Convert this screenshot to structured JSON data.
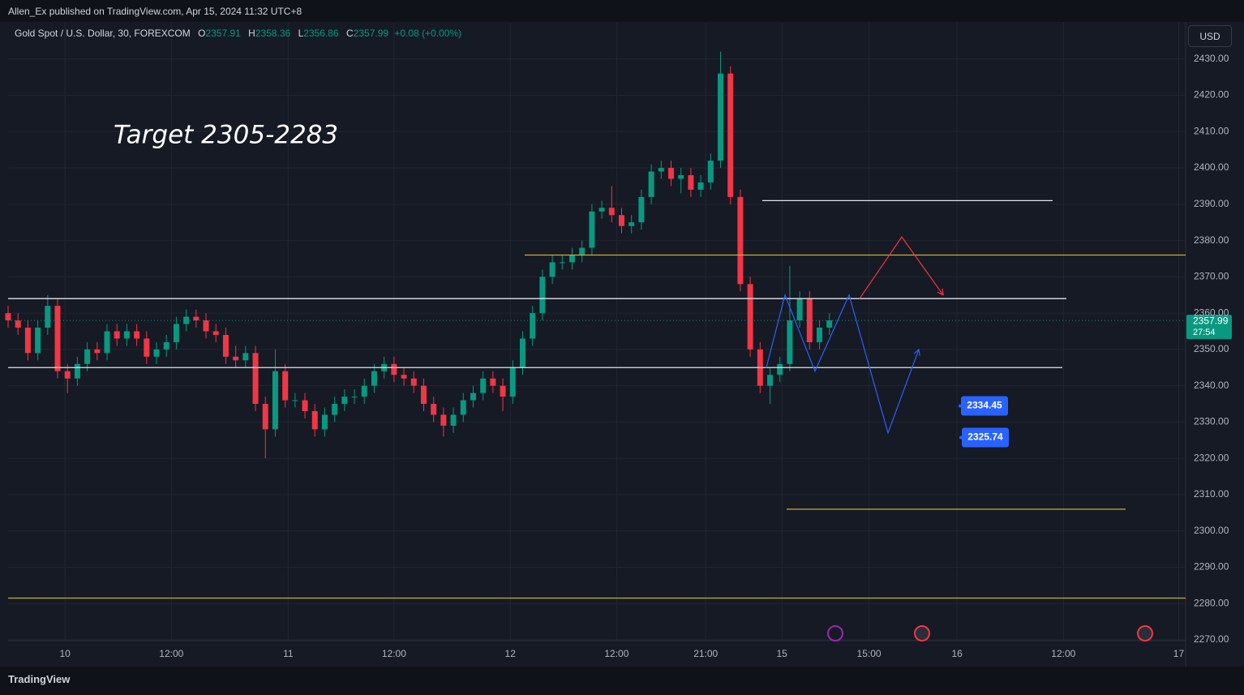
{
  "header": {
    "published": "Allen_Ex published on TradingView.com, Apr 15, 2024 11:32 UTC+8",
    "brand": "TradingView",
    "currency": "USD"
  },
  "chart_data": {
    "type": "candlestick",
    "symbol": "Gold Spot / U.S. Dollar, 30, FOREXCOM",
    "ohlc_legend": [
      {
        "key": "O",
        "value": 2357.91
      },
      {
        "key": "H",
        "value": 2358.36
      },
      {
        "key": "L",
        "value": 2356.86
      },
      {
        "key": "C",
        "value": 2357.99
      }
    ],
    "change": "+0.08 (+0.00%)",
    "annotation": "Target 2305-2283",
    "up_color": "#089981",
    "down_color": "#f23645",
    "xlim": [
      0,
      238
    ],
    "xticks": [
      {
        "value": 11.5,
        "label": "10"
      },
      {
        "value": 33,
        "label": "12:00"
      },
      {
        "value": 56.6,
        "label": "11"
      },
      {
        "value": 78,
        "label": "12:00"
      },
      {
        "value": 101.5,
        "label": "12"
      },
      {
        "value": 123,
        "label": "12:00"
      },
      {
        "value": 141,
        "label": "21:00"
      },
      {
        "value": 156.4,
        "label": "15"
      },
      {
        "value": 174,
        "label": "15:00"
      },
      {
        "value": 191.8,
        "label": "16"
      },
      {
        "value": 213.3,
        "label": "12:00"
      },
      {
        "value": 236.6,
        "label": "17"
      }
    ],
    "ylim": [
      2270,
      2440
    ],
    "yticks": [
      {
        "value": 2270,
        "label": "2270.00"
      },
      {
        "value": 2280,
        "label": "2280.00"
      },
      {
        "value": 2290,
        "label": "2290.00"
      },
      {
        "value": 2300,
        "label": "2300.00"
      },
      {
        "value": 2310,
        "label": "2310.00"
      },
      {
        "value": 2320,
        "label": "2320.00"
      },
      {
        "value": 2330,
        "label": "2330.00"
      },
      {
        "value": 2340,
        "label": "2340.00"
      },
      {
        "value": 2350,
        "label": "2350.00"
      },
      {
        "value": 2360,
        "label": "2360.00"
      },
      {
        "value": 2370,
        "label": "2370.00"
      },
      {
        "value": 2380,
        "label": "2380.00"
      },
      {
        "value": 2390,
        "label": "2390.00"
      },
      {
        "value": 2400,
        "label": "2400.00"
      },
      {
        "value": 2410,
        "label": "2410.00"
      },
      {
        "value": 2420,
        "label": "2420.00"
      },
      {
        "value": 2430,
        "label": "2430.00"
      }
    ],
    "grid": true,
    "series": {
      "x": [
        0,
        2,
        4,
        6,
        8,
        10,
        12,
        14,
        16,
        18,
        20,
        22,
        24,
        26,
        28,
        30,
        32,
        34,
        36,
        38,
        40,
        42,
        44,
        46,
        48,
        50,
        52,
        54,
        56,
        58,
        60,
        62,
        64,
        66,
        68,
        70,
        72,
        74,
        76,
        78,
        80,
        82,
        84,
        86,
        88,
        90,
        92,
        94,
        96,
        98,
        100,
        102,
        104,
        106,
        108,
        110,
        112,
        114,
        116,
        118,
        120,
        122,
        124,
        126,
        128,
        130,
        132,
        134,
        136,
        138,
        140,
        142,
        144,
        146,
        148,
        150,
        152,
        154,
        156,
        158,
        160,
        162,
        164,
        166
      ],
      "open": [
        2360,
        2358,
        2356,
        2349,
        2356,
        2362,
        2344,
        2342,
        2346,
        2350,
        2349,
        2355,
        2353,
        2355,
        2353,
        2348,
        2350,
        2352,
        2357,
        2359,
        2358,
        2355,
        2354,
        2348,
        2347,
        2349,
        2335,
        2328,
        2344,
        2336,
        2336,
        2333,
        2328,
        2332,
        2335,
        2337,
        2337,
        2340,
        2344,
        2346,
        2343,
        2342,
        2340,
        2335,
        2332,
        2329,
        2332,
        2336,
        2338,
        2342,
        2340,
        2337,
        2345,
        2353,
        2360,
        2370,
        2374,
        2374,
        2376,
        2378,
        2388,
        2389,
        2387,
        2384,
        2385,
        2392,
        2399,
        2400,
        2397,
        2398,
        2394,
        2396,
        2402,
        2426,
        2392,
        2368,
        2350,
        2340,
        2343,
        2346,
        2358,
        2364,
        2352,
        2356
      ],
      "high": [
        2362,
        2360,
        2358,
        2358,
        2365,
        2364,
        2346,
        2348,
        2352,
        2352,
        2357,
        2357,
        2357,
        2357,
        2355,
        2352,
        2354,
        2359,
        2361,
        2361,
        2360,
        2357,
        2356,
        2351,
        2351,
        2351,
        2337,
        2350,
        2346,
        2338,
        2338,
        2335,
        2334,
        2337,
        2339,
        2339,
        2342,
        2346,
        2348,
        2348,
        2345,
        2344,
        2342,
        2337,
        2334,
        2334,
        2338,
        2340,
        2344,
        2344,
        2342,
        2347,
        2355,
        2362,
        2372,
        2376,
        2376,
        2378,
        2380,
        2390,
        2391,
        2395,
        2389,
        2387,
        2394,
        2401,
        2402,
        2402,
        2400,
        2400,
        2398,
        2404,
        2432,
        2428,
        2394,
        2370,
        2352,
        2345,
        2348,
        2373,
        2366,
        2366,
        2358,
        2360
      ],
      "low": [
        2356,
        2354,
        2347,
        2347,
        2354,
        2342,
        2338,
        2340,
        2344,
        2347,
        2347,
        2351,
        2351,
        2351,
        2346,
        2346,
        2348,
        2350,
        2355,
        2356,
        2353,
        2352,
        2346,
        2345,
        2345,
        2333,
        2320,
        2326,
        2334,
        2334,
        2331,
        2326,
        2326,
        2330,
        2333,
        2335,
        2335,
        2338,
        2342,
        2341,
        2340,
        2338,
        2333,
        2330,
        2326,
        2327,
        2330,
        2334,
        2336,
        2338,
        2333,
        2335,
        2343,
        2351,
        2358,
        2368,
        2372,
        2372,
        2374,
        2376,
        2386,
        2385,
        2382,
        2382,
        2383,
        2390,
        2397,
        2395,
        2393,
        2392,
        2392,
        2394,
        2400,
        2390,
        2366,
        2348,
        2338,
        2335,
        2341,
        2344,
        2356,
        2350,
        2350,
        2354
      ],
      "close": [
        2358,
        2356,
        2349,
        2356,
        2362,
        2344,
        2342,
        2346,
        2350,
        2349,
        2355,
        2353,
        2355,
        2353,
        2348,
        2350,
        2352,
        2357,
        2359,
        2358,
        2355,
        2354,
        2348,
        2347,
        2349,
        2335,
        2328,
        2344,
        2336,
        2336,
        2333,
        2328,
        2332,
        2335,
        2337,
        2337,
        2340,
        2344,
        2346,
        2343,
        2342,
        2340,
        2335,
        2332,
        2329,
        2332,
        2336,
        2338,
        2342,
        2340,
        2337,
        2345,
        2353,
        2360,
        2370,
        2374,
        2374,
        2376,
        2378,
        2388,
        2389,
        2387,
        2384,
        2385,
        2392,
        2399,
        2400,
        2397,
        2398,
        2394,
        2396,
        2402,
        2426,
        2392,
        2368,
        2350,
        2340,
        2343,
        2346,
        2358,
        2364,
        2352,
        2356,
        2358
      ]
    },
    "levels": [
      {
        "price": 2391,
        "color": "#e0e3eb"
      },
      {
        "price": 2376,
        "color": "#c9b037"
      },
      {
        "price": 2364,
        "color": "#e0e3eb"
      },
      {
        "price": 2345,
        "color": "#e0e3eb"
      },
      {
        "price": 2306,
        "color": "#c9b037"
      },
      {
        "price": 2281.5,
        "color": "#c9b037"
      }
    ],
    "paths": [
      {
        "color": "#2962ff",
        "prices": [
          2345,
          2365,
          2344,
          2365,
          2327,
          2350
        ]
      },
      {
        "color": "#f23645",
        "prices": [
          2364,
          2381,
          2365
        ]
      }
    ],
    "price_labels": [
      2334.45,
      2325.74
    ],
    "last_price": 2357.99,
    "countdown": "27:54"
  }
}
